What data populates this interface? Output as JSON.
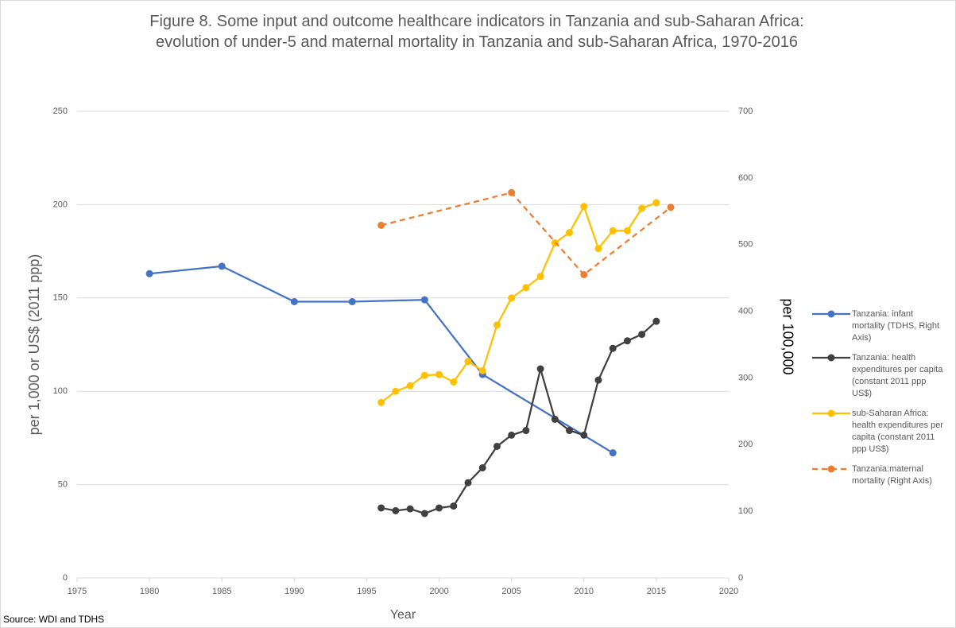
{
  "chart_data": {
    "type": "line",
    "title": "Figure 8. Some input and outcome healthcare indicators in Tanzania  and sub-Saharan Africa:  evolution of under-5 and maternal mortality in Tanzania and sub-Saharan Africa, 1970-2016",
    "x_label": "Year",
    "y_label": "per 1,000 or US$ (2011 ppp)",
    "y2_label": "per 100,000",
    "source": "Source: WDI and TDHS",
    "xlim": [
      1975,
      2020
    ],
    "xticks": [
      1975,
      1980,
      1985,
      1990,
      1995,
      2000,
      2005,
      2010,
      2015,
      2020
    ],
    "ylim": [
      0,
      250
    ],
    "yticks": [
      0,
      50,
      100,
      150,
      200,
      250
    ],
    "y2lim": [
      0,
      700
    ],
    "y2ticks": [
      0,
      100,
      200,
      300,
      400,
      500,
      600,
      700
    ],
    "grid": true,
    "legend": "right",
    "series": [
      {
        "name": "Tanzania: infant mortality (TDHS, Right Axis)",
        "color": "#4472c4",
        "x": [
          1980,
          1985,
          1990,
          1994,
          1999,
          2003,
          2012
        ],
        "values": [
          163,
          167,
          148,
          148,
          149,
          109,
          67
        ]
      },
      {
        "name": "Tanzania: health expenditures per capita (constant 2011 ppp US$)",
        "color": "#404040",
        "x": [
          1996,
          1997,
          1998,
          1999,
          2000,
          2001,
          2002,
          2003,
          2004,
          2005,
          2006,
          2007,
          2008,
          2009,
          2010,
          2011,
          2012,
          2013,
          2014,
          2015
        ],
        "values": [
          37.5,
          36,
          37,
          34.5,
          37.5,
          38.5,
          51,
          59,
          70.5,
          76.5,
          79,
          112,
          85,
          79,
          76.5,
          106,
          123,
          127,
          130.5,
          137.5
        ]
      },
      {
        "name": "sub-Saharan Africa: health expenditures per capita (constant 2011 ppp US$)",
        "color": "#ffc000",
        "x": [
          1996,
          1997,
          1998,
          1999,
          2000,
          2001,
          2002,
          2003,
          2004,
          2005,
          2006,
          2007,
          2008,
          2009,
          2010,
          2011,
          2012,
          2013,
          2014,
          2015
        ],
        "values": [
          94,
          100,
          103,
          108.5,
          109,
          105,
          116,
          111,
          135.5,
          150,
          155.5,
          161.5,
          179.5,
          185,
          199,
          176.5,
          186,
          186,
          198,
          201
        ]
      },
      {
        "name": "Tanzania:maternal mortality (Right Axis)",
        "color": "#ed7d31",
        "axis": "y2",
        "line_style": "dashed",
        "x": [
          1996,
          2005,
          2010,
          2016
        ],
        "values": [
          529,
          578,
          455,
          556
        ]
      }
    ]
  }
}
